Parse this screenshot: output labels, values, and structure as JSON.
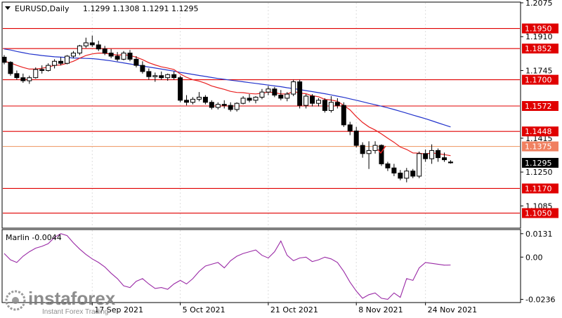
{
  "header": {
    "symbol": "EURUSD,Daily",
    "ohlc": "1.1299 1.1308 1.1291 1.1295"
  },
  "indicator": {
    "label": "Marlin -0.0044"
  },
  "watermark": {
    "brand": "instaforex",
    "tagline": "Instant Forex Trading"
  },
  "colors": {
    "level_line": "#e00000",
    "orange_line": "#f0a070",
    "sma_blue": "#2233cc",
    "ema_red": "#e82020",
    "marlin": "#9a2aa6",
    "badge_red": "#e00000",
    "badge_orange": "#f08060",
    "current_badge": "#000000",
    "grid": "#dddddd"
  },
  "chart_data": [
    {
      "type": "candlestick",
      "title": "EURUSD,Daily",
      "ylim": [
        1.098,
        1.2075
      ],
      "y_ticks": [
        "1.2075",
        "1.1910",
        "1.1745",
        "1.1415",
        "1.1250",
        "1.1085"
      ],
      "x_ticks": [
        "17 Sep 2021",
        "5 Oct 2021",
        "21 Oct 2021",
        "8 Nov 2021",
        "24 Nov 2021"
      ],
      "levels": [
        {
          "value": 1.195,
          "label": "1.1950",
          "color": "red"
        },
        {
          "value": 1.1852,
          "label": "1.1852",
          "color": "red"
        },
        {
          "value": 1.17,
          "label": "1.1700",
          "color": "red"
        },
        {
          "value": 1.1572,
          "label": "1.1572",
          "color": "red"
        },
        {
          "value": 1.1448,
          "label": "1.1448",
          "color": "red"
        },
        {
          "value": 1.1375,
          "label": "1.1375",
          "color": "orange"
        },
        {
          "value": 1.117,
          "label": "1.1170",
          "color": "red"
        },
        {
          "value": 1.105,
          "label": "1.1050",
          "color": "red"
        }
      ],
      "current_price": {
        "value": 1.1295,
        "label": "1.1295"
      },
      "candles": [
        [
          1.181,
          1.182,
          1.1775,
          1.1785
        ],
        [
          1.1785,
          1.179,
          1.172,
          1.173
        ],
        [
          1.173,
          1.1745,
          1.17,
          1.171
        ],
        [
          1.171,
          1.173,
          1.1685,
          1.1695
        ],
        [
          1.1695,
          1.172,
          1.168,
          1.171
        ],
        [
          1.171,
          1.176,
          1.1705,
          1.175
        ],
        [
          1.175,
          1.177,
          1.173,
          1.1745
        ],
        [
          1.1745,
          1.178,
          1.174,
          1.177
        ],
        [
          1.177,
          1.18,
          1.1755,
          1.179
        ],
        [
          1.179,
          1.181,
          1.177,
          1.178
        ],
        [
          1.178,
          1.182,
          1.1775,
          1.1815
        ],
        [
          1.1815,
          1.184,
          1.1805,
          1.183
        ],
        [
          1.183,
          1.187,
          1.182,
          1.1865
        ],
        [
          1.1865,
          1.1905,
          1.1855,
          1.188
        ],
        [
          1.188,
          1.1915,
          1.186,
          1.187
        ],
        [
          1.187,
          1.189,
          1.184,
          1.185
        ],
        [
          1.185,
          1.1865,
          1.182,
          1.183
        ],
        [
          1.183,
          1.185,
          1.1805,
          1.1815
        ],
        [
          1.1815,
          1.1835,
          1.179,
          1.18
        ],
        [
          1.18,
          1.184,
          1.1795,
          1.183
        ],
        [
          1.183,
          1.1845,
          1.179,
          1.18
        ],
        [
          1.18,
          1.1815,
          1.176,
          1.177
        ],
        [
          1.177,
          1.179,
          1.173,
          1.174
        ],
        [
          1.174,
          1.1755,
          1.17,
          1.1715
        ],
        [
          1.1715,
          1.1735,
          1.169,
          1.172
        ],
        [
          1.172,
          1.174,
          1.17,
          1.171
        ],
        [
          1.171,
          1.173,
          1.1695,
          1.1725
        ],
        [
          1.1725,
          1.174,
          1.17,
          1.171
        ],
        [
          1.171,
          1.172,
          1.159,
          1.16
        ],
        [
          1.16,
          1.1625,
          1.1575,
          1.159
        ],
        [
          1.159,
          1.1615,
          1.158,
          1.1605
        ],
        [
          1.1605,
          1.164,
          1.1595,
          1.1615
        ],
        [
          1.1615,
          1.1625,
          1.158,
          1.159
        ],
        [
          1.159,
          1.16,
          1.1555,
          1.1565
        ],
        [
          1.1565,
          1.159,
          1.1555,
          1.158
        ],
        [
          1.158,
          1.16,
          1.156,
          1.1575
        ],
        [
          1.1575,
          1.159,
          1.1545,
          1.1555
        ],
        [
          1.1555,
          1.159,
          1.1545,
          1.1585
        ],
        [
          1.1585,
          1.162,
          1.158,
          1.161
        ],
        [
          1.161,
          1.163,
          1.159,
          1.16
        ],
        [
          1.16,
          1.162,
          1.1585,
          1.1615
        ],
        [
          1.1615,
          1.1655,
          1.1605,
          1.164
        ],
        [
          1.164,
          1.167,
          1.1625,
          1.1655
        ],
        [
          1.1655,
          1.1665,
          1.1615,
          1.1625
        ],
        [
          1.1625,
          1.165,
          1.16,
          1.161
        ],
        [
          1.161,
          1.164,
          1.1595,
          1.163
        ],
        [
          1.163,
          1.17,
          1.162,
          1.169
        ],
        [
          1.169,
          1.17,
          1.156,
          1.1575
        ],
        [
          1.1575,
          1.163,
          1.156,
          1.162
        ],
        [
          1.162,
          1.163,
          1.157,
          1.1585
        ],
        [
          1.1585,
          1.161,
          1.157,
          1.16
        ],
        [
          1.16,
          1.161,
          1.154,
          1.155
        ],
        [
          1.155,
          1.162,
          1.154,
          1.159
        ],
        [
          1.159,
          1.161,
          1.156,
          1.1575
        ],
        [
          1.1575,
          1.159,
          1.147,
          1.148
        ],
        [
          1.148,
          1.1495,
          1.143,
          1.145
        ],
        [
          1.145,
          1.147,
          1.137,
          1.138
        ],
        [
          1.138,
          1.1395,
          1.132,
          1.134
        ],
        [
          1.134,
          1.14,
          1.1265,
          1.1355
        ],
        [
          1.1355,
          1.14,
          1.134,
          1.138
        ],
        [
          1.138,
          1.1385,
          1.128,
          1.129
        ],
        [
          1.129,
          1.13,
          1.1255,
          1.127
        ],
        [
          1.127,
          1.129,
          1.123,
          1.1245
        ],
        [
          1.1245,
          1.126,
          1.121,
          1.122
        ],
        [
          1.122,
          1.127,
          1.12,
          1.1255
        ],
        [
          1.1255,
          1.1265,
          1.122,
          1.123
        ],
        [
          1.123,
          1.135,
          1.122,
          1.134
        ],
        [
          1.134,
          1.136,
          1.13,
          1.1315
        ],
        [
          1.1315,
          1.1385,
          1.129,
          1.1355
        ],
        [
          1.1355,
          1.1365,
          1.13,
          1.132
        ],
        [
          1.132,
          1.1345,
          1.13,
          1.131
        ],
        [
          1.1299,
          1.1308,
          1.1291,
          1.1295
        ]
      ],
      "series": [
        {
          "values": [
            1.185,
            1.1845,
            1.1838,
            1.1832,
            1.1826,
            1.1822,
            1.1818,
            1.1815,
            1.1812,
            1.181,
            1.1808,
            1.1806,
            1.1805,
            1.1804,
            1.1803,
            1.18,
            1.1796,
            1.1792,
            1.1787,
            1.1782,
            1.1777,
            1.1772,
            1.1767,
            1.1762,
            1.1757,
            1.1752,
            1.1747,
            1.1742,
            1.1736,
            1.1731,
            1.1726,
            1.1721,
            1.1716,
            1.1711,
            1.1706,
            1.1702,
            1.1698,
            1.1694,
            1.169,
            1.1686,
            1.1682,
            1.1678,
            1.1674,
            1.167,
            1.1666,
            1.1661,
            1.1657,
            1.1652,
            1.1647,
            1.1642,
            1.1637,
            1.1632,
            1.1626,
            1.162,
            1.1614,
            1.1607,
            1.16,
            1.1593,
            1.1585,
            1.1578,
            1.1571,
            1.1563,
            1.1555,
            1.1546,
            1.1537,
            1.1528,
            1.1519,
            1.151,
            1.15,
            1.149,
            1.148,
            1.147
          ]
        },
        {
          "values": [
            1.179,
            1.1782,
            1.177,
            1.176,
            1.1752,
            1.1752,
            1.1756,
            1.1762,
            1.177,
            1.1772,
            1.178,
            1.179,
            1.1805,
            1.1818,
            1.1826,
            1.183,
            1.1829,
            1.1825,
            1.182,
            1.1822,
            1.1818,
            1.181,
            1.1798,
            1.1783,
            1.1772,
            1.1763,
            1.1757,
            1.175,
            1.1728,
            1.1712,
            1.17,
            1.1693,
            1.1683,
            1.167,
            1.1661,
            1.1653,
            1.1643,
            1.1638,
            1.1637,
            1.1633,
            1.1631,
            1.1634,
            1.164,
            1.1637,
            1.1631,
            1.1631,
            1.1643,
            1.1635,
            1.1632,
            1.1622,
            1.1617,
            1.1604,
            1.1601,
            1.1595,
            1.1575,
            1.1553,
            1.152,
            1.1492,
            1.147,
            1.1455,
            1.1436,
            1.1415,
            1.1395,
            1.1372,
            1.136,
            1.1343,
            1.1342,
            1.1338,
            1.1343,
            1.134,
            1.1335,
            1.133
          ]
        }
      ]
    },
    {
      "type": "line",
      "title": "Marlin -0.0044",
      "ylim": [
        -0.025,
        0.015
      ],
      "y_ticks": [
        "0.0131",
        "0.00",
        "-0.0236"
      ],
      "series": [
        {
          "name": "Marlin",
          "values": [
            0.002,
            -0.0015,
            -0.003,
            0.0005,
            0.003,
            0.005,
            0.006,
            0.0075,
            0.011,
            0.0131,
            0.012,
            0.008,
            0.0045,
            0.0015,
            -0.001,
            -0.003,
            -0.0055,
            -0.009,
            -0.012,
            -0.016,
            -0.017,
            -0.0135,
            -0.012,
            -0.015,
            -0.0175,
            -0.017,
            -0.018,
            -0.015,
            -0.013,
            -0.015,
            -0.012,
            -0.008,
            -0.005,
            -0.004,
            -0.003,
            -0.006,
            -0.002,
            0.0005,
            0.002,
            0.003,
            0.004,
            0.001,
            -0.0005,
            0.003,
            0.009,
            0.001,
            -0.002,
            -0.0005,
            0.0,
            -0.0025,
            -0.0015,
            0.0,
            -0.001,
            -0.003,
            -0.008,
            -0.014,
            -0.019,
            -0.023,
            -0.021,
            -0.02,
            -0.023,
            -0.0236,
            -0.02,
            -0.0225,
            -0.012,
            -0.013,
            -0.006,
            -0.003,
            -0.0035,
            -0.004,
            -0.0045,
            -0.0044
          ]
        }
      ]
    }
  ]
}
